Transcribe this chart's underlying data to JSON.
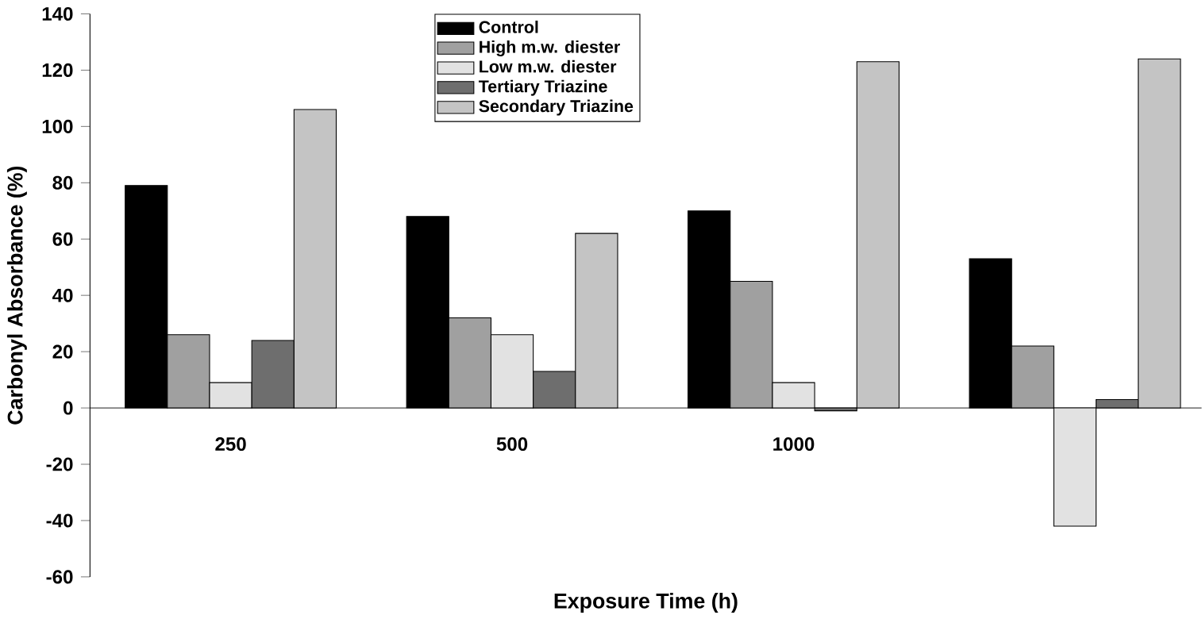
{
  "chart_data": {
    "type": "bar",
    "xlabel": "Exposure Time (h)",
    "ylabel": "Carbonyl Absorbance (%)",
    "categories": [
      "250",
      "500",
      "1000",
      null
    ],
    "series": [
      {
        "name": "Control",
        "color": "#000000",
        "values": [
          79,
          68,
          70,
          53
        ]
      },
      {
        "name": "High m.w. diester",
        "color": "#a0a0a0",
        "values": [
          26,
          32,
          45,
          22
        ]
      },
      {
        "name": "Low m.w. diester",
        "color": "#e2e2e2",
        "values": [
          9,
          26,
          9,
          -42
        ]
      },
      {
        "name": "Tertiary Triazine",
        "color": "#6e6e6e",
        "values": [
          24,
          13,
          -1,
          3
        ]
      },
      {
        "name": "Secondary Triazine",
        "color": "#c4c4c4",
        "values": [
          106,
          62,
          123,
          124
        ]
      }
    ],
    "ylim": [
      -60,
      140
    ],
    "yticks": [
      -60,
      -40,
      -20,
      0,
      20,
      40,
      60,
      80,
      100,
      120,
      140
    ],
    "legend": "top",
    "grid": false
  }
}
